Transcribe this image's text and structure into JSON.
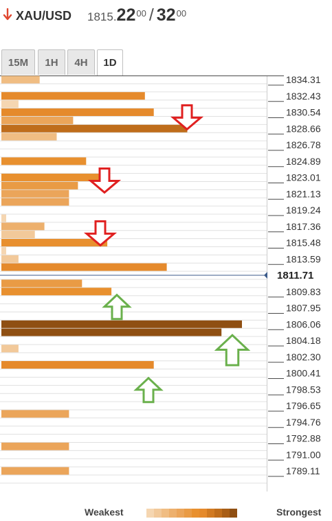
{
  "header": {
    "direction_icon": "down-arrow-icon",
    "symbol": "XAU/USD",
    "bid_prefix": "1815.",
    "bid_big": "22",
    "bid_sup": "00",
    "slash": "/",
    "ask_big": "32",
    "ask_sup": "00"
  },
  "tabs": [
    {
      "label": "15M",
      "active": false
    },
    {
      "label": "1H",
      "active": false
    },
    {
      "label": "4H",
      "active": false
    },
    {
      "label": "1D",
      "active": true
    }
  ],
  "chart_data": {
    "type": "bar",
    "orientation": "horizontal",
    "current_price": "1811.71",
    "y_range": [
      1788.0,
      1835.0
    ],
    "tick_labels": [
      "1834.31",
      "1832.43",
      "1830.54",
      "1828.66",
      "1826.78",
      "1824.89",
      "1823.01",
      "1821.13",
      "1819.24",
      "1817.36",
      "1815.48",
      "1813.59",
      "1811.71",
      "1809.83",
      "1807.95",
      "1806.06",
      "1804.18",
      "1802.30",
      "1800.41",
      "1798.53",
      "1796.65",
      "1794.76",
      "1792.88",
      "1791.00",
      "1789.11"
    ],
    "levels": [
      {
        "price": 1834.31,
        "strength": 3
      },
      {
        "price": 1832.43,
        "strength": 8
      },
      {
        "price": 1831.49,
        "strength": 1
      },
      {
        "price": 1830.54,
        "strength": 8
      },
      {
        "price": 1829.6,
        "strength": 5
      },
      {
        "price": 1828.66,
        "strength": 10
      },
      {
        "price": 1827.72,
        "strength": 3
      },
      {
        "price": 1824.89,
        "strength": 7
      },
      {
        "price": 1823.01,
        "strength": 7
      },
      {
        "price": 1822.07,
        "strength": 6
      },
      {
        "price": 1821.13,
        "strength": 5
      },
      {
        "price": 1820.19,
        "strength": 5
      },
      {
        "price": 1818.3,
        "strength": 1
      },
      {
        "price": 1817.36,
        "strength": 4
      },
      {
        "price": 1816.42,
        "strength": 2
      },
      {
        "price": 1815.48,
        "strength": 7
      },
      {
        "price": 1814.54,
        "strength": 1
      },
      {
        "price": 1813.59,
        "strength": 2
      },
      {
        "price": 1812.65,
        "strength": 8
      },
      {
        "price": 1810.77,
        "strength": 6
      },
      {
        "price": 1809.83,
        "strength": 7
      },
      {
        "price": 1806.06,
        "strength": 12
      },
      {
        "price": 1805.12,
        "strength": 12
      },
      {
        "price": 1803.24,
        "strength": 2
      },
      {
        "price": 1801.36,
        "strength": 8
      },
      {
        "price": 1795.7,
        "strength": 5
      },
      {
        "price": 1791.94,
        "strength": 5
      },
      {
        "price": 1789.11,
        "strength": 5
      }
    ],
    "bar_values": [
      56,
      210,
      25,
      223,
      105,
      272,
      81,
      124,
      155,
      112,
      99,
      99,
      7,
      63,
      49,
      155,
      7,
      25,
      242,
      118,
      161,
      352,
      322,
      25,
      223,
      99,
      99,
      99
    ],
    "value_scale_max": 352,
    "resistance_arrows": [
      1829.6,
      1822.3,
      1816.2
    ],
    "support_arrows": [
      1808.4,
      1803.5,
      1798.8
    ]
  },
  "legend": {
    "weakest": "Weakest",
    "strongest": "Strongest",
    "scale_colors": [
      "#f5d6b1",
      "#f2c99a",
      "#f0bd83",
      "#edb06d",
      "#eba55a",
      "#e99b45",
      "#e8902f",
      "#e58a2c",
      "#d17a22",
      "#bf6d1b",
      "#a85e16",
      "#8f4f12"
    ]
  },
  "colors": {
    "resistance_arrow": "#e02020",
    "support_arrow": "#6ab04c",
    "axis_line": "#4a4a4a",
    "grid_line": "#e0e0e0",
    "current_line": "#3b5a8a"
  }
}
